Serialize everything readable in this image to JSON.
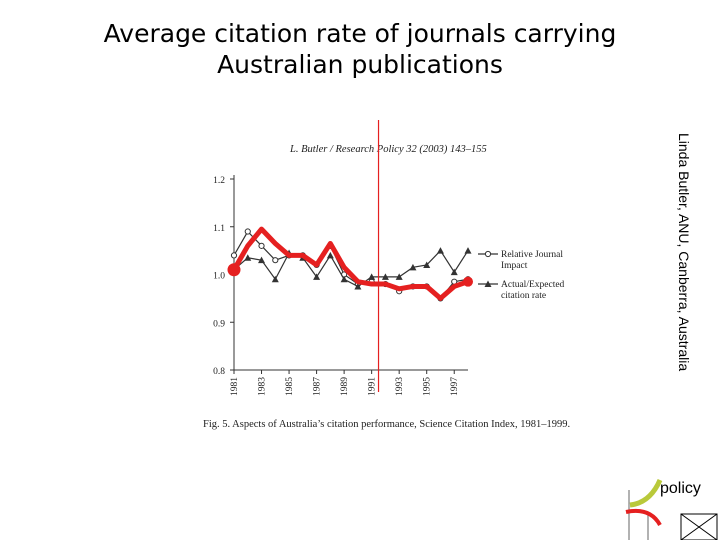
{
  "slide": {
    "title_line1": "Average citation rate of journals carrying",
    "title_line2": "Australian publications",
    "side_credit": "Linda Butler, ANU, Canberra, Australia",
    "logo_text": "policy"
  },
  "figure": {
    "header": "L. Butler / Research Policy 32 (2003) 143–155",
    "caption": "Fig. 5.  Aspects of Australia’s citation performance, Science Citation Index, 1981–1999."
  },
  "chart_data": {
    "type": "line",
    "x": [
      1981,
      1982,
      1983,
      1984,
      1985,
      1986,
      1987,
      1988,
      1989,
      1990,
      1991,
      1992,
      1993,
      1994,
      1995,
      1996,
      1997,
      1998
    ],
    "ylim": [
      0.8,
      1.2
    ],
    "xlim": [
      1981,
      1998
    ],
    "yticks": [
      "0.8",
      "0.9",
      "1.0",
      "1.1",
      "1.2"
    ],
    "xticks": [
      "1981",
      "1983",
      "1985",
      "1987",
      "1989",
      "1991",
      "1993",
      "1995",
      "1997"
    ],
    "series": [
      {
        "name": "Relative Journal Impact",
        "marker": "circle",
        "color": "#333333",
        "values": [
          1.04,
          1.09,
          1.06,
          1.03,
          1.04,
          1.04,
          1.02,
          1.06,
          1.0,
          0.98,
          0.985,
          0.98,
          0.965,
          0.975,
          0.975,
          0.95,
          0.985,
          0.99
        ]
      },
      {
        "name": "Actual/Expected citation rate",
        "marker": "triangle",
        "color": "#333333",
        "values": [
          1.01,
          1.035,
          1.03,
          0.99,
          1.045,
          1.035,
          0.995,
          1.04,
          0.99,
          0.975,
          0.995,
          0.995,
          0.995,
          1.015,
          1.02,
          1.05,
          1.005,
          1.05
        ]
      },
      {
        "name": "",
        "marker": "none",
        "color": "#e52020",
        "overlay": true,
        "values": [
          1.01,
          1.06,
          1.095,
          1.065,
          1.04,
          1.04,
          1.02,
          1.065,
          1.015,
          0.985,
          0.98,
          0.98,
          0.97,
          0.975,
          0.975,
          0.95,
          0.975,
          0.985
        ]
      }
    ],
    "annotation_vline_x": 1991.5,
    "annotation_color": "#e52020",
    "legend": "right"
  }
}
